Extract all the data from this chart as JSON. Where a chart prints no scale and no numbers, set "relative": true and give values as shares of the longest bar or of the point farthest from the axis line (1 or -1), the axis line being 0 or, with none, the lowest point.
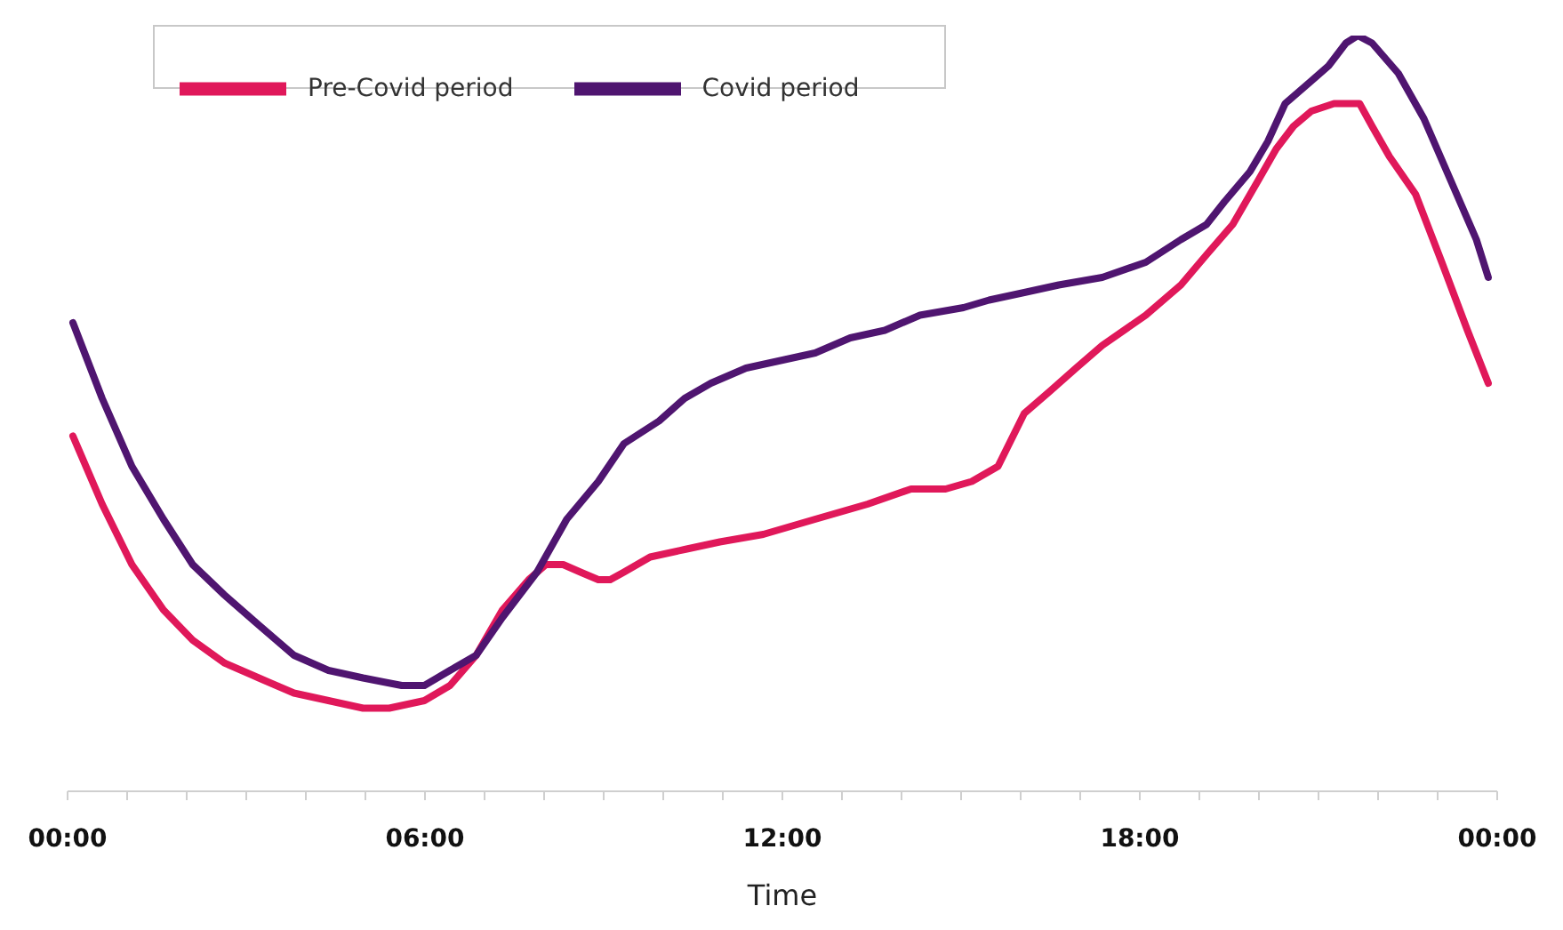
{
  "chart_data": {
    "type": "line",
    "relative": true,
    "xlabel": "Time",
    "xlim": [
      0,
      24
    ],
    "xticks": [
      {
        "value": 0,
        "label": "00:00"
      },
      {
        "value": 1,
        "label": null
      },
      {
        "value": 2,
        "label": null
      },
      {
        "value": 3,
        "label": null
      },
      {
        "value": 4,
        "label": null
      },
      {
        "value": 5,
        "label": null
      },
      {
        "value": 6,
        "label": "06:00"
      },
      {
        "value": 7,
        "label": null
      },
      {
        "value": 8,
        "label": null
      },
      {
        "value": 9,
        "label": null
      },
      {
        "value": 10,
        "label": null
      },
      {
        "value": 11,
        "label": null
      },
      {
        "value": 12,
        "label": "12:00"
      },
      {
        "value": 13,
        "label": null
      },
      {
        "value": 14,
        "label": null
      },
      {
        "value": 15,
        "label": null
      },
      {
        "value": 16,
        "label": null
      },
      {
        "value": 17,
        "label": null
      },
      {
        "value": 18,
        "label": "18:00"
      },
      {
        "value": 19,
        "label": null
      },
      {
        "value": 20,
        "label": null
      },
      {
        "value": 21,
        "label": null
      },
      {
        "value": 22,
        "label": null
      },
      {
        "value": 23,
        "label": null
      },
      {
        "value": 24,
        "label": "00:00"
      }
    ],
    "grid": false,
    "legend": "top",
    "marker": "none",
    "line_style": "solid",
    "series": [
      {
        "name": "Pre-Covid period",
        "color": "#e0185a",
        "x": [
          0.09,
          0.58,
          1.08,
          1.61,
          2.1,
          2.63,
          3.21,
          3.8,
          4.38,
          4.96,
          5.4,
          5.99,
          6.42,
          6.86,
          7.3,
          7.74,
          8.03,
          8.32,
          8.61,
          8.91,
          9.11,
          9.34,
          9.78,
          10.36,
          10.95,
          11.68,
          12.55,
          13.43,
          14.16,
          14.74,
          15.18,
          15.62,
          16.06,
          16.5,
          16.93,
          17.37,
          18.1,
          18.69,
          19.12,
          19.56,
          20.0,
          20.29,
          20.58,
          20.88,
          21.26,
          21.46,
          21.69,
          21.9,
          22.19,
          22.63,
          23.07,
          23.5,
          23.85
        ],
        "values": [
          0.47,
          0.38,
          0.3,
          0.24,
          0.2,
          0.17,
          0.15,
          0.13,
          0.12,
          0.11,
          0.11,
          0.12,
          0.14,
          0.18,
          0.24,
          0.28,
          0.3,
          0.3,
          0.29,
          0.28,
          0.28,
          0.29,
          0.31,
          0.32,
          0.33,
          0.34,
          0.36,
          0.38,
          0.4,
          0.4,
          0.41,
          0.43,
          0.5,
          0.53,
          0.56,
          0.59,
          0.63,
          0.67,
          0.71,
          0.75,
          0.81,
          0.85,
          0.88,
          0.9,
          0.91,
          0.91,
          0.91,
          0.88,
          0.84,
          0.79,
          0.7,
          0.61,
          0.54
        ]
      },
      {
        "name": "Covid period",
        "color": "#4f1570",
        "x": [
          0.09,
          0.58,
          1.08,
          1.61,
          2.1,
          2.63,
          3.21,
          3.8,
          4.38,
          4.96,
          5.61,
          5.99,
          6.42,
          6.86,
          7.3,
          7.88,
          8.38,
          8.91,
          9.34,
          9.93,
          10.36,
          10.8,
          11.39,
          11.97,
          12.55,
          13.14,
          13.72,
          14.31,
          15.04,
          15.47,
          16.06,
          16.64,
          17.37,
          18.1,
          18.69,
          19.12,
          19.42,
          19.85,
          20.15,
          20.44,
          20.88,
          21.17,
          21.46,
          21.66,
          21.9,
          22.34,
          22.77,
          23.21,
          23.65,
          23.85
        ],
        "values": [
          0.62,
          0.52,
          0.43,
          0.36,
          0.3,
          0.26,
          0.22,
          0.18,
          0.16,
          0.15,
          0.14,
          0.14,
          0.16,
          0.18,
          0.23,
          0.29,
          0.36,
          0.41,
          0.46,
          0.49,
          0.52,
          0.54,
          0.56,
          0.57,
          0.58,
          0.6,
          0.61,
          0.63,
          0.64,
          0.65,
          0.66,
          0.67,
          0.68,
          0.7,
          0.73,
          0.75,
          0.78,
          0.82,
          0.86,
          0.91,
          0.94,
          0.96,
          0.99,
          1,
          0.99,
          0.95,
          0.89,
          0.81,
          0.73,
          0.68
        ]
      }
    ]
  }
}
